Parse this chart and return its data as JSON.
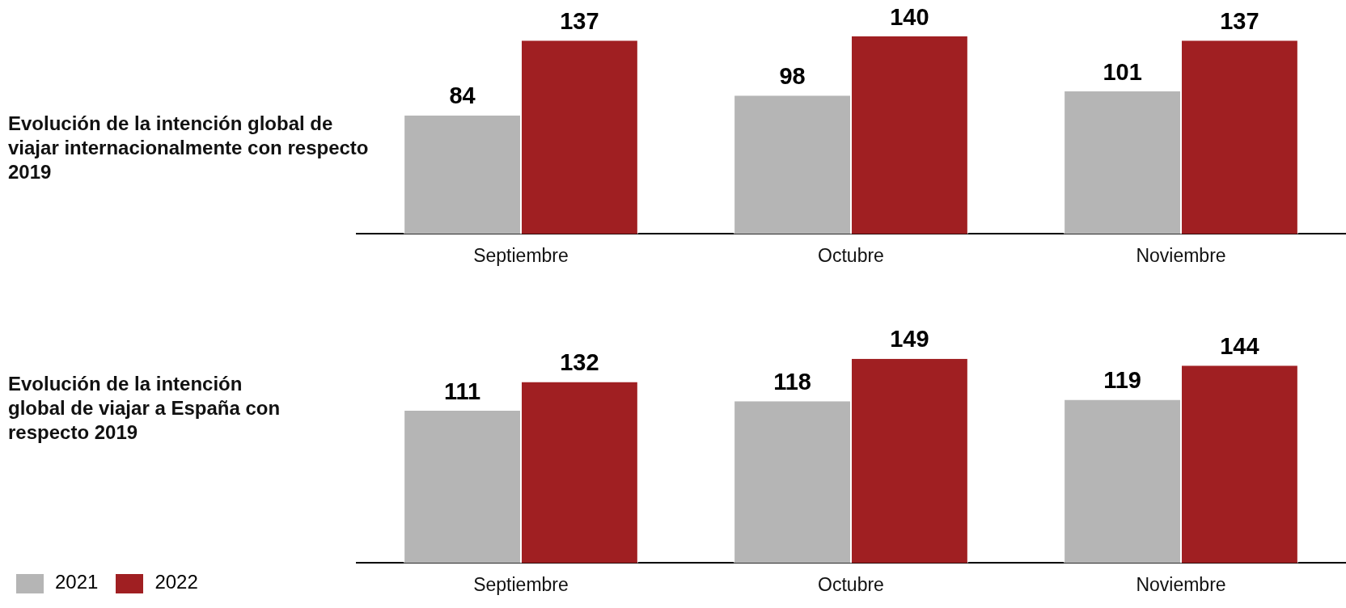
{
  "chart_data": [
    {
      "type": "bar",
      "title": "Evolución de la intención global de viajar internacionalmente con respecto 2019",
      "categories": [
        "Septiembre",
        "Octubre",
        "Noviembre"
      ],
      "series": [
        {
          "color": "#b5b5b5",
          "values": [
            84,
            98,
            101
          ]
        },
        {
          "color": "#a01f22",
          "values": [
            137,
            140,
            137
          ]
        }
      ],
      "data_labels": true,
      "tick_labels": "x",
      "grid": false
    },
    {
      "type": "bar",
      "title": "Evolución de la intención global de viajar a España con respecto 2019",
      "categories": [
        "Septiembre",
        "Octubre",
        "Noviembre"
      ],
      "series": [
        {
          "name": "2021",
          "color": "#b5b5b5",
          "values": [
            111,
            118,
            119
          ]
        },
        {
          "name": "2022",
          "color": "#a01f22",
          "values": [
            132,
            149,
            144
          ]
        }
      ],
      "data_labels": true,
      "tick_labels": "x",
      "grid": false,
      "legend": "bottom left"
    }
  ]
}
